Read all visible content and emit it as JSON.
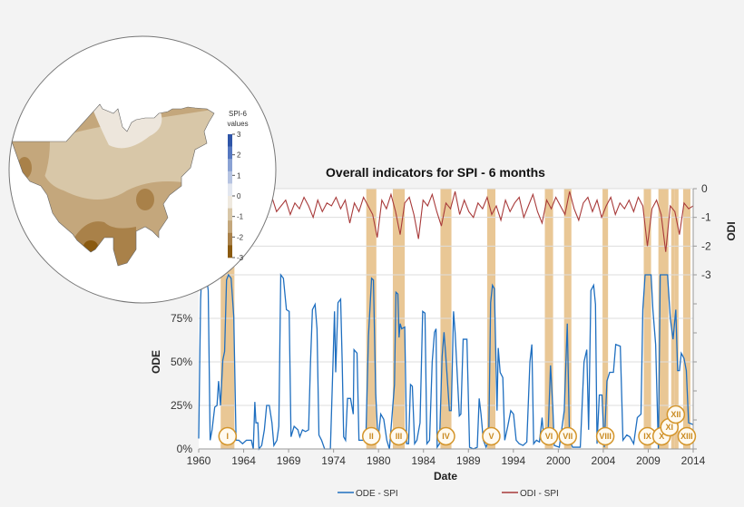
{
  "chart_data": {
    "type": "line",
    "title": "Overall indicators for SPI - 6 months",
    "xlabel": "Date",
    "ylabel_left": "ODE",
    "ylabel_right": "ODI",
    "x_tick_labels": [
      "1960",
      "1964",
      "1969",
      "1974",
      "1980",
      "1984",
      "1989",
      "1994",
      "2000",
      "2004",
      "2009",
      "2014"
    ],
    "xlim": [
      1960,
      2014
    ],
    "ylim_left": [
      0,
      100
    ],
    "y_left_ticks": [
      "0%",
      "25%",
      "50%",
      "75%"
    ],
    "ylim_right": [
      -3,
      0
    ],
    "y_right_ticks": [
      "0",
      "-1",
      "-2",
      "-3"
    ],
    "grid": true,
    "legend_position": "bottom",
    "series": [
      {
        "name": "ODE - SPI",
        "axis": "left",
        "color": "#1f6fc0",
        "points": [
          [
            1960,
            6
          ],
          [
            1960.21,
            86
          ],
          [
            1960.33,
            100
          ],
          [
            1960.83,
            100
          ],
          [
            1961.04,
            91
          ],
          [
            1961.25,
            5
          ],
          [
            1961.46,
            11
          ],
          [
            1961.75,
            24
          ],
          [
            1962,
            25
          ],
          [
            1962.17,
            39
          ],
          [
            1962.38,
            25
          ],
          [
            1962.63,
            51
          ],
          [
            1962.83,
            56
          ],
          [
            1963.04,
            97
          ],
          [
            1963.25,
            100
          ],
          [
            1963.54,
            98
          ],
          [
            1963.83,
            76
          ],
          [
            1964.08,
            5
          ],
          [
            1964.38,
            5
          ],
          [
            1964.79,
            3
          ],
          [
            1965.21,
            5
          ],
          [
            1965.75,
            5
          ],
          [
            1965.96,
            0
          ],
          [
            1966.13,
            27
          ],
          [
            1966.25,
            15
          ],
          [
            1966.46,
            15
          ],
          [
            1966.58,
            0
          ],
          [
            1966.88,
            2
          ],
          [
            1967.17,
            11
          ],
          [
            1967.42,
            25
          ],
          [
            1967.71,
            25
          ],
          [
            1968,
            15
          ],
          [
            1968.21,
            2
          ],
          [
            1968.54,
            5
          ],
          [
            1968.75,
            13
          ],
          [
            1968.96,
            100
          ],
          [
            1969.25,
            98
          ],
          [
            1969.58,
            80
          ],
          [
            1969.88,
            79
          ],
          [
            1970.08,
            7
          ],
          [
            1970.42,
            13
          ],
          [
            1970.83,
            11
          ],
          [
            1971.04,
            7
          ],
          [
            1971.33,
            11
          ],
          [
            1971.67,
            10
          ],
          [
            1972,
            11
          ],
          [
            1972.21,
            50
          ],
          [
            1972.42,
            80
          ],
          [
            1972.71,
            83
          ],
          [
            1972.92,
            69
          ],
          [
            1973.13,
            8
          ],
          [
            1973.42,
            5
          ],
          [
            1973.75,
            0
          ],
          [
            1974.38,
            0
          ],
          [
            1974.67,
            50
          ],
          [
            1974.83,
            79
          ],
          [
            1974.96,
            44
          ],
          [
            1975.21,
            84
          ],
          [
            1975.5,
            86
          ],
          [
            1975.67,
            50
          ],
          [
            1975.83,
            7
          ],
          [
            1976.04,
            5
          ],
          [
            1976.25,
            29
          ],
          [
            1976.58,
            29
          ],
          [
            1976.88,
            20
          ],
          [
            1976.96,
            57
          ],
          [
            1977.29,
            55
          ],
          [
            1977.5,
            5
          ],
          [
            1977.83,
            5
          ],
          [
            1978.25,
            5
          ],
          [
            1978.54,
            65
          ],
          [
            1978.88,
            98
          ],
          [
            1979.08,
            97
          ],
          [
            1979.33,
            32
          ],
          [
            1979.58,
            5
          ],
          [
            1979.88,
            20
          ],
          [
            1980.21,
            17
          ],
          [
            1980.54,
            5
          ],
          [
            1980.83,
            0
          ],
          [
            1981.38,
            37
          ],
          [
            1981.54,
            90
          ],
          [
            1981.75,
            89
          ],
          [
            1981.88,
            64
          ],
          [
            1982,
            72
          ],
          [
            1982.17,
            69
          ],
          [
            1982.5,
            70
          ],
          [
            1982.71,
            3
          ],
          [
            1982.92,
            3
          ],
          [
            1983.13,
            37
          ],
          [
            1983.33,
            36
          ],
          [
            1983.58,
            3
          ],
          [
            1983.83,
            5
          ],
          [
            1984.17,
            15
          ],
          [
            1984.46,
            79
          ],
          [
            1984.71,
            78
          ],
          [
            1984.92,
            3
          ],
          [
            1985.21,
            5
          ],
          [
            1985.5,
            50
          ],
          [
            1985.75,
            67
          ],
          [
            1985.92,
            69
          ],
          [
            1986.04,
            1
          ],
          [
            1986.29,
            3
          ],
          [
            1986.58,
            53
          ],
          [
            1986.79,
            67
          ],
          [
            1986.96,
            55
          ],
          [
            1987.38,
            22
          ],
          [
            1987.58,
            22
          ],
          [
            1987.83,
            79
          ],
          [
            1988,
            67
          ],
          [
            1988.25,
            41
          ],
          [
            1988.46,
            19
          ],
          [
            1988.63,
            20
          ],
          [
            1988.88,
            63
          ],
          [
            1989.29,
            63
          ],
          [
            1989.58,
            1
          ],
          [
            1990,
            0
          ],
          [
            1990.42,
            1
          ],
          [
            1990.63,
            29
          ],
          [
            1990.83,
            20
          ],
          [
            1991.08,
            5
          ],
          [
            1991.38,
            1
          ],
          [
            1991.67,
            5
          ],
          [
            1991.88,
            84
          ],
          [
            1992.08,
            94
          ],
          [
            1992.29,
            92
          ],
          [
            1992.58,
            22
          ],
          [
            1992.71,
            58
          ],
          [
            1992.92,
            44
          ],
          [
            1993.21,
            41
          ],
          [
            1993.42,
            5
          ],
          [
            1993.75,
            13
          ],
          [
            1994.08,
            22
          ],
          [
            1994.38,
            20
          ],
          [
            1994.67,
            5
          ],
          [
            1995,
            3
          ],
          [
            1995.42,
            2
          ],
          [
            1995.83,
            4
          ],
          [
            1996.17,
            50
          ],
          [
            1996.38,
            60
          ],
          [
            1996.58,
            3
          ],
          [
            1996.88,
            5
          ],
          [
            1997.21,
            4
          ],
          [
            1997.5,
            18
          ],
          [
            1997.71,
            4
          ],
          [
            1998.13,
            5
          ],
          [
            1998.42,
            48
          ],
          [
            1998.67,
            24
          ],
          [
            1998.83,
            2
          ],
          [
            1999.38,
            1
          ],
          [
            1999.92,
            22
          ],
          [
            2000.25,
            72
          ],
          [
            2000.5,
            5
          ],
          [
            2000.83,
            1
          ],
          [
            2001.67,
            1
          ],
          [
            2002.08,
            50
          ],
          [
            2002.38,
            57
          ],
          [
            2002.58,
            11
          ],
          [
            2002.83,
            91
          ],
          [
            2003.13,
            94
          ],
          [
            2003.33,
            83
          ],
          [
            2003.5,
            3
          ],
          [
            2003.75,
            31
          ],
          [
            2004.04,
            31
          ],
          [
            2004.29,
            1
          ],
          [
            2004.58,
            39
          ],
          [
            2004.88,
            44
          ],
          [
            2005.29,
            44
          ],
          [
            2005.54,
            60
          ],
          [
            2006.04,
            59
          ],
          [
            2006.33,
            5
          ],
          [
            2006.75,
            8
          ],
          [
            2007.08,
            7
          ],
          [
            2007.5,
            3
          ],
          [
            2007.9,
            18
          ],
          [
            2008.3,
            20
          ],
          [
            2008.5,
            80
          ],
          [
            2008.75,
            100
          ],
          [
            2009.4,
            100
          ],
          [
            2009.6,
            80
          ],
          [
            2009.9,
            60
          ],
          [
            2010.2,
            0
          ],
          [
            2010.4,
            100
          ],
          [
            2011.2,
            100
          ],
          [
            2011.5,
            75
          ],
          [
            2011.8,
            63
          ],
          [
            2012.1,
            80
          ],
          [
            2012.3,
            45
          ],
          [
            2012.5,
            45
          ],
          [
            2012.7,
            55
          ],
          [
            2013,
            52
          ],
          [
            2013.25,
            45
          ],
          [
            2013.5,
            15
          ],
          [
            2014,
            14
          ]
        ]
      },
      {
        "name": "ODI - SPI",
        "axis": "right",
        "color": "#a83a3a",
        "x_start": 1960,
        "x_step": 0.5,
        "values": [
          -0.8,
          -0.5,
          -1.6,
          -0.6,
          -0.7,
          -0.4,
          -1.5,
          -0.5,
          -0.8,
          -0.3,
          -0.6,
          -0.9,
          -0.4,
          -0.7,
          -1.0,
          -0.5,
          -0.3,
          -0.8,
          -0.6,
          -0.4,
          -0.9,
          -0.5,
          -0.7,
          -0.3,
          -0.6,
          -1.0,
          -0.4,
          -0.8,
          -0.5,
          -0.6,
          -0.3,
          -0.7,
          -0.4,
          -1.2,
          -0.5,
          -0.8,
          -0.3,
          -0.6,
          -0.9,
          -1.7,
          -0.4,
          -0.7,
          -0.2,
          -0.8,
          -1.6,
          -0.5,
          -0.3,
          -0.9,
          -1.75,
          -0.4,
          -0.6,
          -0.2,
          -0.8,
          -1.3,
          -0.5,
          -0.7,
          -0.1,
          -0.9,
          -0.4,
          -0.8,
          -1.0,
          -0.5,
          -0.7,
          -0.3,
          -0.9,
          -0.6,
          -1.1,
          -0.4,
          -0.8,
          -0.5,
          -0.3,
          -1.0,
          -0.6,
          -0.2,
          -0.8,
          -1.2,
          -0.4,
          -0.7,
          -0.3,
          -0.6,
          -0.9,
          -0.1,
          -0.7,
          -1.1,
          -0.5,
          -0.3,
          -0.8,
          -0.4,
          -1.0,
          -0.6,
          -0.3,
          -0.9,
          -0.5,
          -0.7,
          -0.4,
          -0.8,
          -0.3,
          -0.6,
          -2.0,
          -0.7,
          -0.4,
          -0.9,
          -2.2,
          -0.6,
          -0.8,
          -1.6,
          -0.5,
          -0.7,
          -0.6
        ]
      }
    ],
    "drought_events": [
      {
        "label": "I",
        "start": 1962.4,
        "end": 1963.9
      },
      {
        "label": "II",
        "start": 1978.3,
        "end": 1979.4
      },
      {
        "label": "III",
        "start": 1981.2,
        "end": 1982.5
      },
      {
        "label": "IV",
        "start": 1986.4,
        "end": 1987.6
      },
      {
        "label": "V",
        "start": 1991.5,
        "end": 1992.4
      },
      {
        "label": "VI",
        "start": 1997.8,
        "end": 1998.7
      },
      {
        "label": "VII",
        "start": 1999.9,
        "end": 2000.7
      },
      {
        "label": "VIII",
        "start": 2004.1,
        "end": 2004.7
      },
      {
        "label": "IX",
        "start": 2008.6,
        "end": 2009.4
      },
      {
        "label": "X",
        "start": 2010.2,
        "end": 2011.3
      },
      {
        "label": "XI",
        "start": 2011.6,
        "end": 2012.0
      },
      {
        "label": "XII",
        "start": 2012.0,
        "end": 2012.4
      },
      {
        "label": "XIII",
        "start": 2012.9,
        "end": 2013.7
      }
    ],
    "event_band_color": "#e9c795"
  },
  "map_inset": {
    "colorbar_title_1": "SPI-6",
    "colorbar_title_2": "values",
    "colorbar_ticks": [
      "3",
      "2",
      "1",
      "0",
      "-1",
      "-2",
      "-3"
    ],
    "colorbar_colors": [
      "#2f55a8",
      "#5577c0",
      "#8aa2d4",
      "#b6c4e2",
      "#e3e7f0",
      "#efe9df",
      "#d8c7a8",
      "#c4a77c",
      "#a98149",
      "#8a5a10"
    ]
  }
}
